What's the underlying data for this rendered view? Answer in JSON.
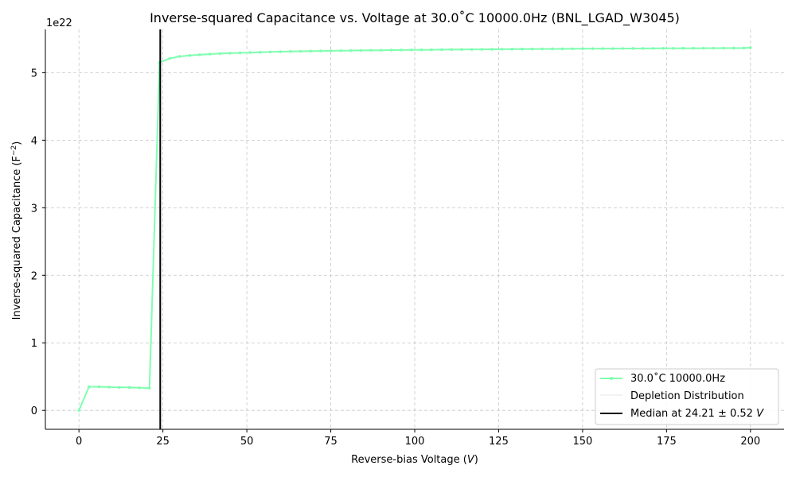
{
  "chart_data": {
    "type": "line",
    "title": "Inverse-squared Capacitance vs. Voltage at 30.0˚C 10000.0Hz (BNL_LGAD_W3045)",
    "xlabel": "Reverse-bias Voltage (",
    "xlabel_unit": "V",
    "xlabel_close": ")",
    "ylabel": "Inverse-squared Capacitance (F",
    "ylabel_sup": "−2",
    "ylabel_close": ")",
    "y_offset_label": "1e22",
    "xlim": [
      -10,
      210
    ],
    "ylim": [
      -0.28,
      5.64
    ],
    "x_ticks": [
      0,
      25,
      50,
      75,
      100,
      125,
      150,
      175,
      200
    ],
    "x_tick_labels": [
      "0",
      "25",
      "50",
      "75",
      "100",
      "125",
      "150",
      "175",
      "200"
    ],
    "y_ticks": [
      0,
      1,
      2,
      3,
      4,
      5
    ],
    "y_tick_labels": [
      "0",
      "1",
      "2",
      "3",
      "4",
      "5"
    ],
    "grid": true,
    "legend_position": "bottom-right",
    "series": [
      {
        "name": "30.0˚C 10000.0Hz",
        "color": "#7fffb0",
        "x": [
          0,
          3,
          6,
          9,
          12,
          15,
          18,
          21,
          24,
          27,
          30,
          33,
          36,
          39,
          42,
          45,
          48,
          51,
          54,
          57,
          60,
          63,
          66,
          69,
          72,
          75,
          78,
          81,
          84,
          87,
          90,
          93,
          96,
          99,
          102,
          105,
          108,
          111,
          114,
          117,
          120,
          123,
          126,
          129,
          132,
          135,
          138,
          141,
          144,
          147,
          150,
          153,
          156,
          159,
          162,
          165,
          168,
          171,
          174,
          177,
          180,
          183,
          186,
          189,
          192,
          195,
          198,
          200
        ],
        "y": [
          0.0,
          0.35,
          0.35,
          0.345,
          0.34,
          0.34,
          0.335,
          0.33,
          5.15,
          5.21,
          5.24,
          5.255,
          5.265,
          5.275,
          5.282,
          5.288,
          5.293,
          5.298,
          5.302,
          5.306,
          5.31,
          5.313,
          5.316,
          5.318,
          5.321,
          5.323,
          5.325,
          5.327,
          5.329,
          5.331,
          5.332,
          5.334,
          5.335,
          5.337,
          5.338,
          5.339,
          5.341,
          5.342,
          5.343,
          5.344,
          5.345,
          5.346,
          5.347,
          5.348,
          5.349,
          5.35,
          5.351,
          5.352,
          5.352,
          5.353,
          5.354,
          5.355,
          5.356,
          5.356,
          5.357,
          5.358,
          5.358,
          5.359,
          5.36,
          5.36,
          5.361,
          5.361,
          5.362,
          5.362,
          5.363,
          5.364,
          5.364,
          5.37
        ]
      },
      {
        "name": "Depletion Distribution",
        "color": "#e6e6e6"
      }
    ],
    "median_line": {
      "label_prefix": "Median at 24.21 ± 0.52 ",
      "label_unit": "V",
      "x": 24.21,
      "color": "#000000"
    }
  }
}
